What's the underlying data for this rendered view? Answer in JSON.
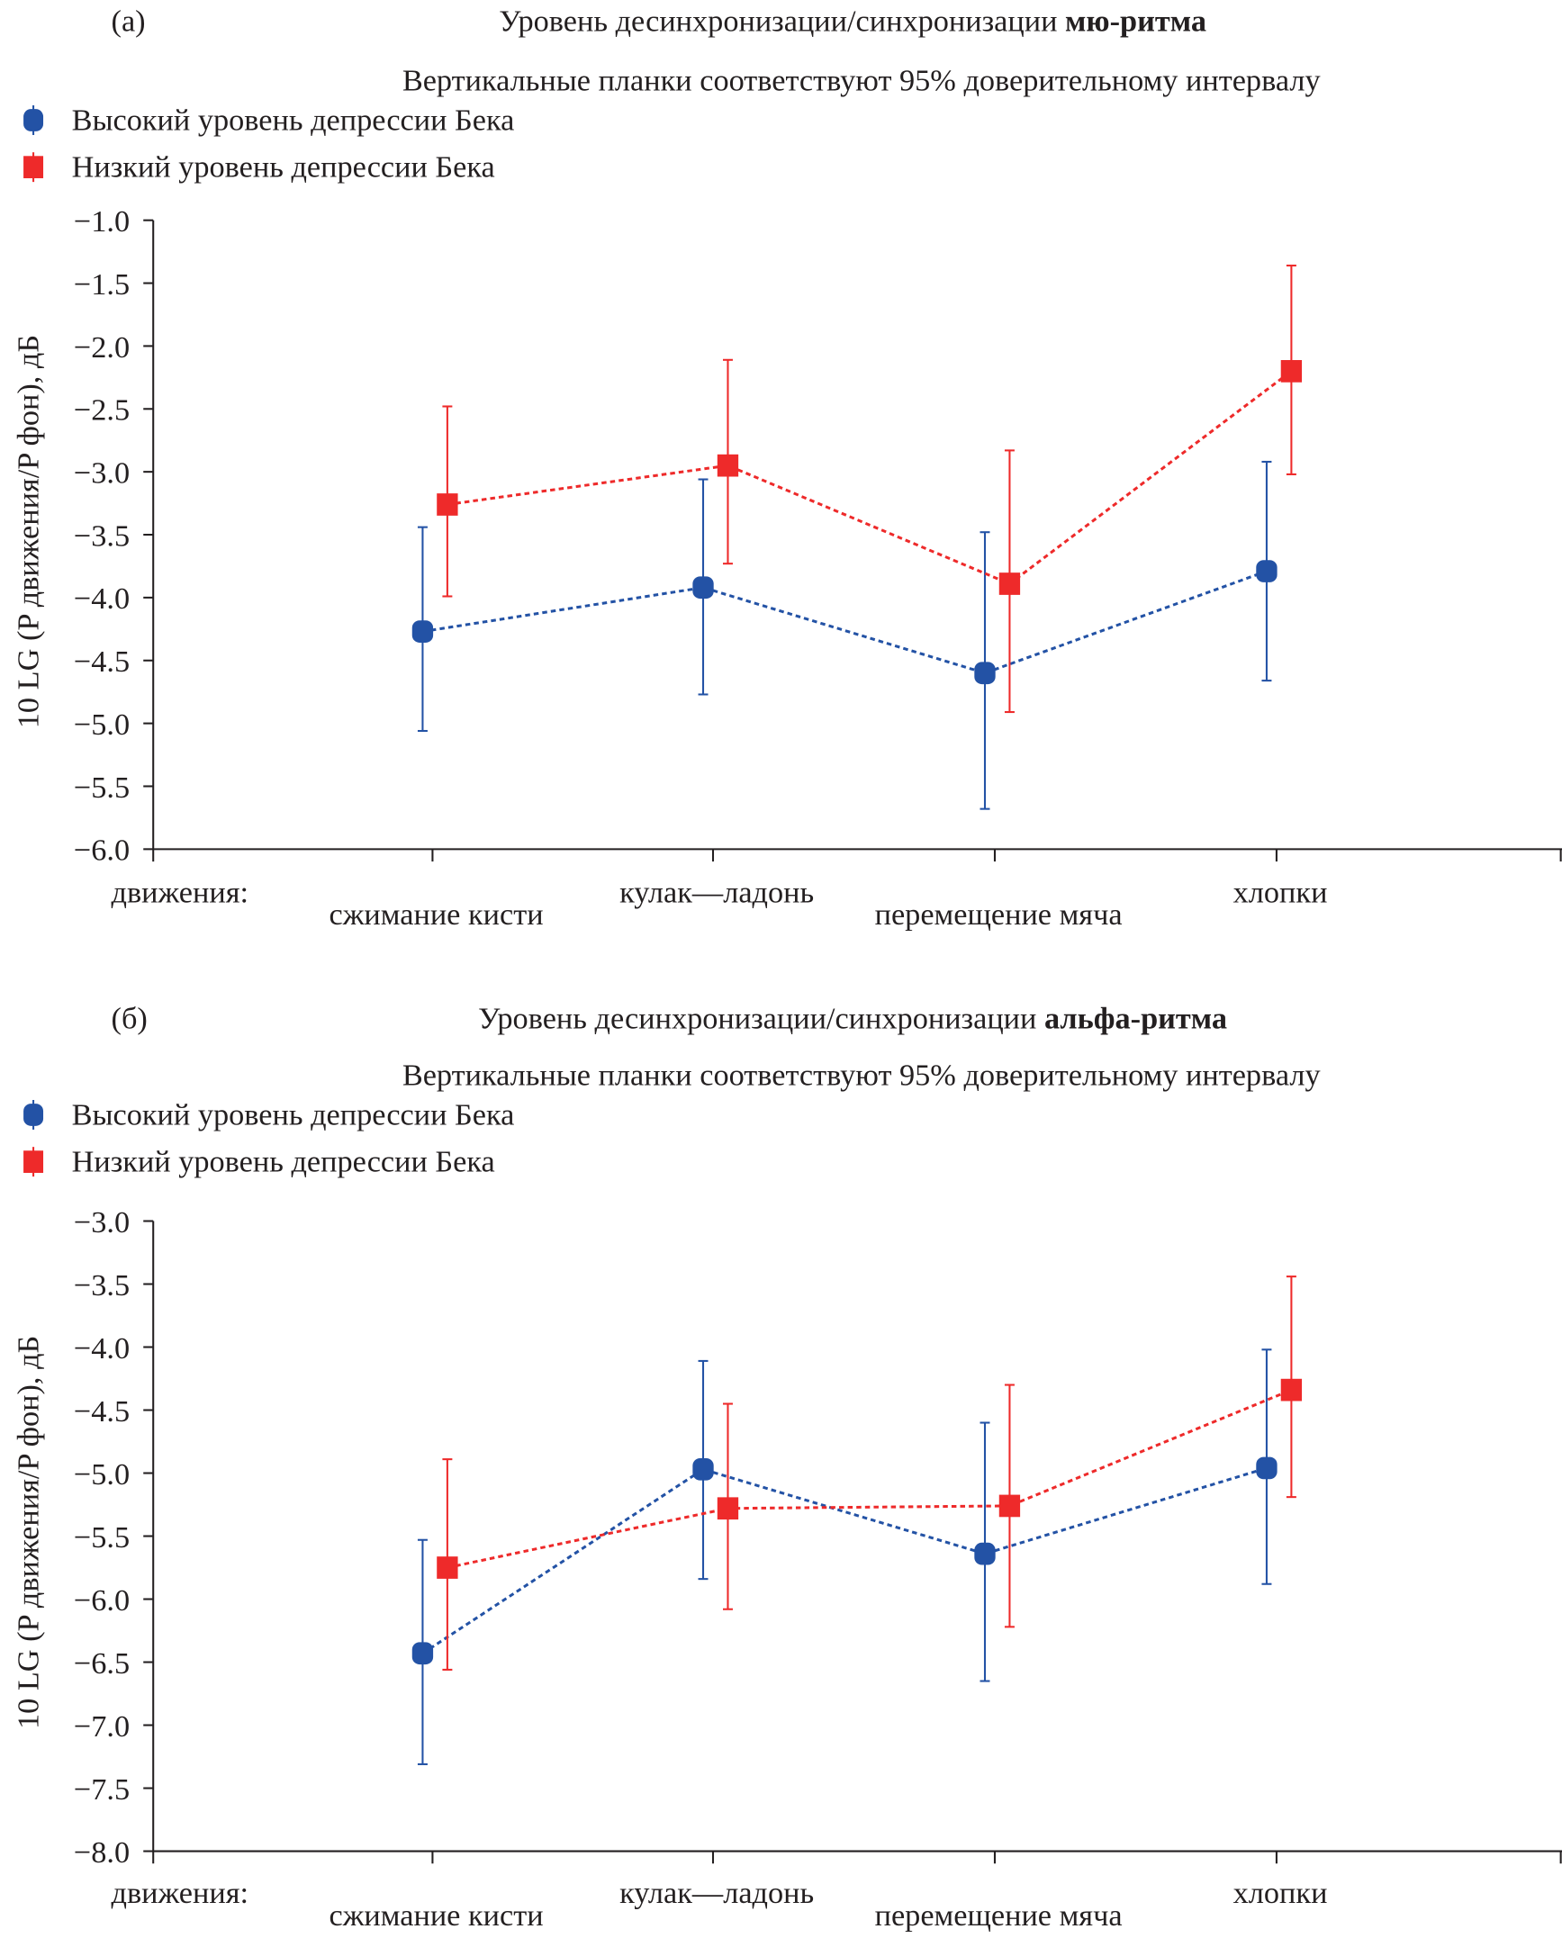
{
  "colors": {
    "high": "#2352a5",
    "low": "#ee2a2a",
    "axis": "#231f20"
  },
  "chart_data": [
    {
      "type": "line",
      "panel_label": "(а)",
      "title": "Уровень десинхронизации/синхронизации ",
      "title_bold": "мю-ритма",
      "subtitle": "Вертикальные планки соответствуют 95% доверительному интервалу",
      "ylabel": "10 LG (P движения/P фон), дБ",
      "xlabel": "движения:",
      "categories": [
        "сжимание кисти",
        "кулак—ладонь",
        "перемещение мяча",
        "хлопки"
      ],
      "ylim": [
        -6.0,
        -1.0
      ],
      "yticks": [
        "−1.0",
        "−1.5",
        "−2.0",
        "−2.5",
        "−3.0",
        "−3.5",
        "−4.0",
        "−4.5",
        "−5.0",
        "−5.5",
        "−6.0"
      ],
      "legend": "top-left",
      "grid": false,
      "series": [
        {
          "name": "Высокий уровень депрессии Бека",
          "color": "#2352a5",
          "marker": "circle",
          "values": [
            -4.27,
            -3.92,
            -4.6,
            -3.79
          ],
          "ci_low": [
            -5.06,
            -4.77,
            -5.68,
            -4.66
          ],
          "ci_high": [
            -3.44,
            -3.06,
            -3.48,
            -2.92
          ]
        },
        {
          "name": "Низкий уровень депрессии Бека",
          "color": "#ee2a2a",
          "marker": "square",
          "values": [
            -3.26,
            -2.95,
            -3.89,
            -2.2
          ],
          "ci_low": [
            -3.99,
            -3.73,
            -4.91,
            -3.02
          ],
          "ci_high": [
            -2.48,
            -2.11,
            -2.83,
            -1.36
          ]
        }
      ]
    },
    {
      "type": "line",
      "panel_label": "(б)",
      "title": "Уровень десинхронизации/синхронизации ",
      "title_bold": "альфа-ритма",
      "subtitle": "Вертикальные планки соответствуют 95% доверительному интервалу",
      "ylabel": "10 LG (P движения/P фон), дБ",
      "xlabel": "движения:",
      "categories": [
        "сжимание кисти",
        "кулак—ладонь",
        "перемещение мяча",
        "хлопки"
      ],
      "ylim": [
        -8.0,
        -3.0
      ],
      "yticks": [
        "−3.0",
        "−3.5",
        "−4.0",
        "−4.5",
        "−5.0",
        "−5.5",
        "−6.0",
        "−6.5",
        "−7.0",
        "−7.5",
        "−8.0"
      ],
      "legend": "top-left",
      "grid": false,
      "series": [
        {
          "name": "Высокий уровень депрессии Бека",
          "color": "#2352a5",
          "marker": "circle",
          "values": [
            -6.43,
            -4.97,
            -5.64,
            -4.96
          ],
          "ci_low": [
            -7.31,
            -5.84,
            -6.65,
            -5.88
          ],
          "ci_high": [
            -5.53,
            -4.11,
            -4.6,
            -4.02
          ]
        },
        {
          "name": "Низкий уровень депрессии Бека",
          "color": "#ee2a2a",
          "marker": "square",
          "values": [
            -5.75,
            -5.28,
            -5.26,
            -4.34
          ],
          "ci_low": [
            -6.56,
            -6.08,
            -6.22,
            -5.19
          ],
          "ci_high": [
            -4.89,
            -4.45,
            -4.3,
            -3.44
          ]
        }
      ]
    }
  ]
}
